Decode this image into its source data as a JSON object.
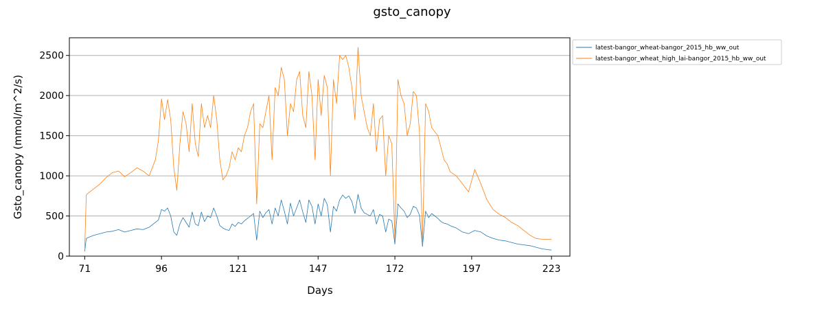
{
  "chart_data": {
    "type": "line",
    "title": "gsto_canopy",
    "xlabel": "Days",
    "ylabel": "Gsto_canopy (mmol/m^2/s)",
    "xlim": [
      66,
      229
    ],
    "ylim": [
      0,
      2720
    ],
    "xticks": [
      71,
      96,
      121,
      147,
      172,
      197,
      223
    ],
    "xtick_labels": [
      "71",
      "96",
      "121",
      "147",
      "172",
      "197",
      "223"
    ],
    "yticks": [
      0,
      500,
      1000,
      1500,
      2000,
      2500
    ],
    "ytick_labels": [
      "0",
      "500",
      "1000",
      "1500",
      "2000",
      "2500"
    ],
    "grid": "horizontal",
    "legend_position": "outside-top-right",
    "series": [
      {
        "name": "latest-bangor_wheat-bangor_2015_hb_ww_out",
        "color": "#1f77b4",
        "x": [
          71,
          71.5,
          72,
          74,
          76,
          78,
          80,
          82,
          84,
          86,
          88,
          90,
          92,
          94,
          95,
          96,
          97,
          98,
          99,
          100,
          101,
          102,
          103,
          104,
          105,
          106,
          107,
          108,
          109,
          110,
          111,
          112,
          113,
          114,
          115,
          116,
          117,
          118,
          119,
          120,
          121,
          122,
          123,
          124,
          125,
          126,
          127,
          128,
          129,
          130,
          131,
          132,
          133,
          134,
          135,
          136,
          137,
          138,
          139,
          140,
          141,
          142,
          143,
          144,
          145,
          146,
          147,
          148,
          149,
          150,
          151,
          152,
          153,
          154,
          155,
          156,
          157,
          158,
          159,
          160,
          161,
          162,
          163,
          164,
          165,
          166,
          167,
          168,
          169,
          170,
          171,
          172,
          173,
          174,
          175,
          176,
          177,
          178,
          179,
          180,
          181,
          182,
          183,
          184,
          185,
          186,
          187,
          188,
          189,
          190,
          192,
          194,
          196,
          198,
          200,
          202,
          204,
          206,
          208,
          210,
          212,
          214,
          216,
          218,
          220,
          222,
          223
        ],
        "y": [
          60,
          220,
          230,
          260,
          280,
          300,
          310,
          330,
          300,
          320,
          340,
          330,
          360,
          420,
          450,
          580,
          560,
          600,
          500,
          300,
          260,
          400,
          480,
          420,
          360,
          550,
          400,
          380,
          550,
          430,
          500,
          480,
          600,
          500,
          380,
          350,
          330,
          320,
          400,
          370,
          420,
          400,
          440,
          470,
          500,
          530,
          200,
          560,
          480,
          540,
          580,
          400,
          600,
          500,
          700,
          560,
          400,
          660,
          500,
          600,
          700,
          550,
          420,
          700,
          620,
          400,
          650,
          500,
          720,
          640,
          300,
          620,
          560,
          700,
          760,
          720,
          750,
          680,
          530,
          770,
          600,
          540,
          520,
          500,
          580,
          400,
          520,
          500,
          300,
          460,
          440,
          150,
          650,
          600,
          560,
          480,
          520,
          620,
          600,
          510,
          120,
          560,
          480,
          530,
          500,
          470,
          430,
          410,
          400,
          380,
          350,
          300,
          280,
          320,
          300,
          250,
          220,
          200,
          190,
          170,
          150,
          140,
          130,
          110,
          90,
          80,
          75
        ]
      },
      {
        "name": "latest-bangor_wheat_high_lai-bangor_2015_hb_ww_out",
        "color": "#ff7f0e",
        "x": [
          71,
          71.5,
          72,
          74,
          76,
          78,
          80,
          82,
          84,
          86,
          88,
          90,
          92,
          94,
          95,
          96,
          97,
          98,
          99,
          100,
          101,
          102,
          103,
          104,
          105,
          106,
          107,
          108,
          109,
          110,
          111,
          112,
          113,
          114,
          115,
          116,
          117,
          118,
          119,
          120,
          121,
          122,
          123,
          124,
          125,
          126,
          127,
          128,
          129,
          130,
          131,
          132,
          133,
          134,
          135,
          136,
          137,
          138,
          139,
          140,
          141,
          142,
          143,
          144,
          145,
          146,
          147,
          148,
          149,
          150,
          151,
          152,
          153,
          154,
          155,
          156,
          157,
          158,
          159,
          160,
          161,
          162,
          163,
          164,
          165,
          166,
          167,
          168,
          169,
          170,
          171,
          172,
          173,
          174,
          175,
          176,
          177,
          178,
          179,
          180,
          181,
          182,
          183,
          184,
          185,
          186,
          187,
          188,
          189,
          190,
          192,
          194,
          196,
          198,
          200,
          202,
          204,
          206,
          208,
          210,
          212,
          214,
          216,
          218,
          220,
          222,
          223
        ],
        "y": [
          100,
          760,
          780,
          840,
          900,
          980,
          1040,
          1060,
          990,
          1040,
          1100,
          1060,
          1000,
          1200,
          1440,
          1960,
          1700,
          1950,
          1700,
          1100,
          820,
          1400,
          1800,
          1650,
          1300,
          1900,
          1400,
          1240,
          1900,
          1600,
          1750,
          1600,
          2000,
          1700,
          1200,
          950,
          1000,
          1100,
          1300,
          1200,
          1350,
          1300,
          1500,
          1600,
          1800,
          1900,
          650,
          1650,
          1600,
          1800,
          2000,
          1200,
          2100,
          2000,
          2350,
          2200,
          1500,
          1900,
          1800,
          2200,
          2300,
          1750,
          1600,
          2300,
          2000,
          1200,
          2200,
          1750,
          2250,
          2100,
          1000,
          2200,
          1900,
          2500,
          2450,
          2500,
          2350,
          2100,
          1700,
          2600,
          2000,
          1800,
          1600,
          1500,
          1900,
          1300,
          1700,
          1750,
          1000,
          1500,
          1400,
          200,
          2200,
          2000,
          1900,
          1500,
          1650,
          2050,
          2000,
          1550,
          150,
          1900,
          1800,
          1600,
          1550,
          1500,
          1350,
          1200,
          1150,
          1050,
          1000,
          900,
          800,
          1080,
          900,
          700,
          580,
          520,
          480,
          420,
          380,
          320,
          260,
          220,
          210,
          210,
          210
        ]
      }
    ]
  }
}
